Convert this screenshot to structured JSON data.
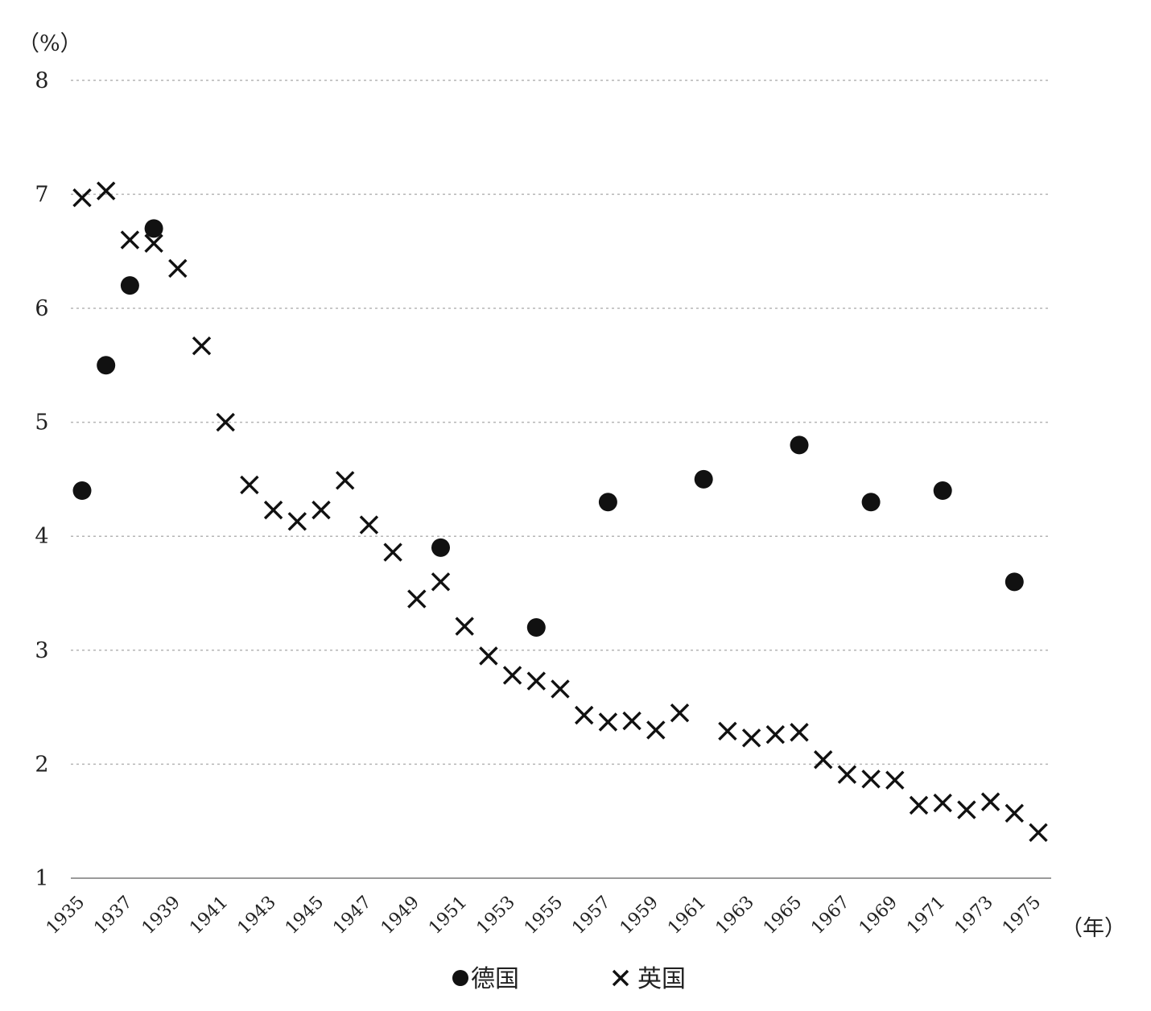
{
  "chart_data": {
    "type": "scatter",
    "title": "",
    "y_unit_label": "（%）",
    "x_unit_label": "（年）",
    "ylim": [
      1,
      8
    ],
    "xlim": [
      1935,
      1976
    ],
    "y_ticks": [
      "1",
      "2",
      "3",
      "4",
      "5",
      "6",
      "7",
      "8"
    ],
    "x_ticks": [
      "1935",
      "1937",
      "1939",
      "1941",
      "1943",
      "1945",
      "1947",
      "1949",
      "1951",
      "1953",
      "1955",
      "1957",
      "1959",
      "1961",
      "1963",
      "1965",
      "1967",
      "1969",
      "1971",
      "1973",
      "1975"
    ],
    "grid": true,
    "legend_position": "bottom-center",
    "series": [
      {
        "name": "德国",
        "marker": "circle",
        "color": "#111111",
        "points": [
          [
            1935,
            4.4
          ],
          [
            1936,
            5.5
          ],
          [
            1937,
            6.2
          ],
          [
            1938,
            6.7
          ],
          [
            1950,
            3.9
          ],
          [
            1954,
            3.2
          ],
          [
            1957,
            4.3
          ],
          [
            1961,
            4.5
          ],
          [
            1965,
            4.8
          ],
          [
            1968,
            4.3
          ],
          [
            1971,
            4.4
          ],
          [
            1974,
            3.6
          ]
        ]
      },
      {
        "name": "英国",
        "marker": "x",
        "color": "#111111",
        "points": [
          [
            1935,
            6.97
          ],
          [
            1936,
            7.03
          ],
          [
            1937,
            6.6
          ],
          [
            1938,
            6.57
          ],
          [
            1939,
            6.35
          ],
          [
            1940,
            5.67
          ],
          [
            1941,
            5.0
          ],
          [
            1942,
            4.45
          ],
          [
            1943,
            4.23
          ],
          [
            1944,
            4.13
          ],
          [
            1945,
            4.23
          ],
          [
            1946,
            4.49
          ],
          [
            1947,
            4.1
          ],
          [
            1948,
            3.86
          ],
          [
            1949,
            3.45
          ],
          [
            1950,
            3.6
          ],
          [
            1951,
            3.21
          ],
          [
            1952,
            2.95
          ],
          [
            1953,
            2.78
          ],
          [
            1954,
            2.73
          ],
          [
            1955,
            2.66
          ],
          [
            1956,
            2.43
          ],
          [
            1957,
            2.37
          ],
          [
            1958,
            2.38
          ],
          [
            1959,
            2.3
          ],
          [
            1960,
            2.45
          ],
          [
            1962,
            2.29
          ],
          [
            1963,
            2.23
          ],
          [
            1964,
            2.26
          ],
          [
            1965,
            2.28
          ],
          [
            1966,
            2.04
          ],
          [
            1967,
            1.91
          ],
          [
            1968,
            1.87
          ],
          [
            1969,
            1.86
          ],
          [
            1970,
            1.64
          ],
          [
            1971,
            1.66
          ],
          [
            1972,
            1.6
          ],
          [
            1973,
            1.67
          ],
          [
            1974,
            1.57
          ],
          [
            1975,
            1.4
          ]
        ]
      }
    ]
  }
}
